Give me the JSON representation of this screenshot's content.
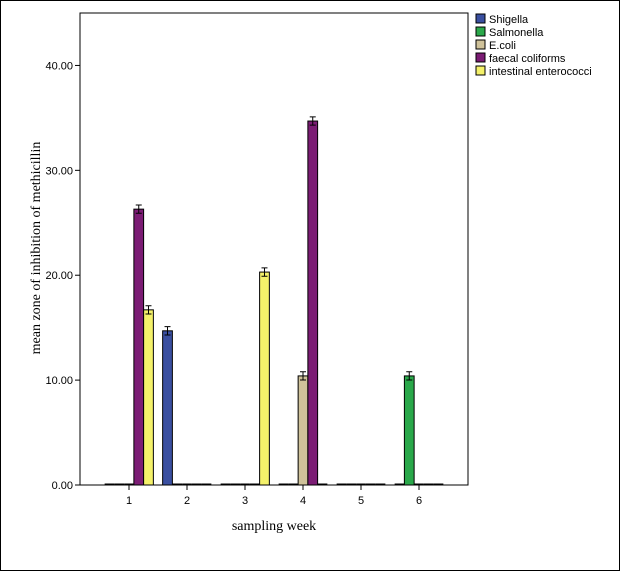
{
  "chart_data": {
    "type": "bar",
    "title": "",
    "xlabel": "sampling week",
    "ylabel": "mean zone of inhibition of methicillin",
    "categories": [
      "1",
      "2",
      "3",
      "4",
      "5",
      "6"
    ],
    "ylim": [
      0,
      45
    ],
    "yticks": [
      0,
      10,
      20,
      30,
      40
    ],
    "ytick_labels": [
      "0.00",
      "10.00",
      "20.00",
      "30.00",
      "40.00"
    ],
    "grid": false,
    "legend_position": "top-right outside",
    "error_bars": true,
    "series": [
      {
        "name": "Shigella",
        "color": "#3a4fa0",
        "values": [
          0,
          14.7,
          0,
          0,
          0,
          0
        ],
        "errors": [
          0,
          0.3,
          0,
          0,
          0,
          0
        ]
      },
      {
        "name": "Salmonella",
        "color": "#2aa84a",
        "values": [
          0,
          0,
          0,
          0,
          0,
          10.4
        ],
        "errors": [
          0,
          0,
          0,
          0,
          0,
          0.3
        ]
      },
      {
        "name": "E.coli",
        "color": "#cfc29a",
        "values": [
          0,
          0,
          0,
          10.4,
          0,
          0
        ],
        "errors": [
          0,
          0,
          0,
          0.3,
          0,
          0
        ]
      },
      {
        "name": "faecal coliforms",
        "color": "#7b1c74",
        "values": [
          26.3,
          0,
          0,
          34.7,
          0,
          0
        ],
        "errors": [
          0.3,
          0,
          0,
          0.3,
          0,
          0
        ]
      },
      {
        "name": "intestinal enterococci",
        "color": "#f4f16a",
        "values": [
          16.7,
          0,
          20.3,
          0,
          0,
          0
        ],
        "errors": [
          0.3,
          0,
          0.3,
          0,
          0,
          0
        ]
      }
    ]
  }
}
